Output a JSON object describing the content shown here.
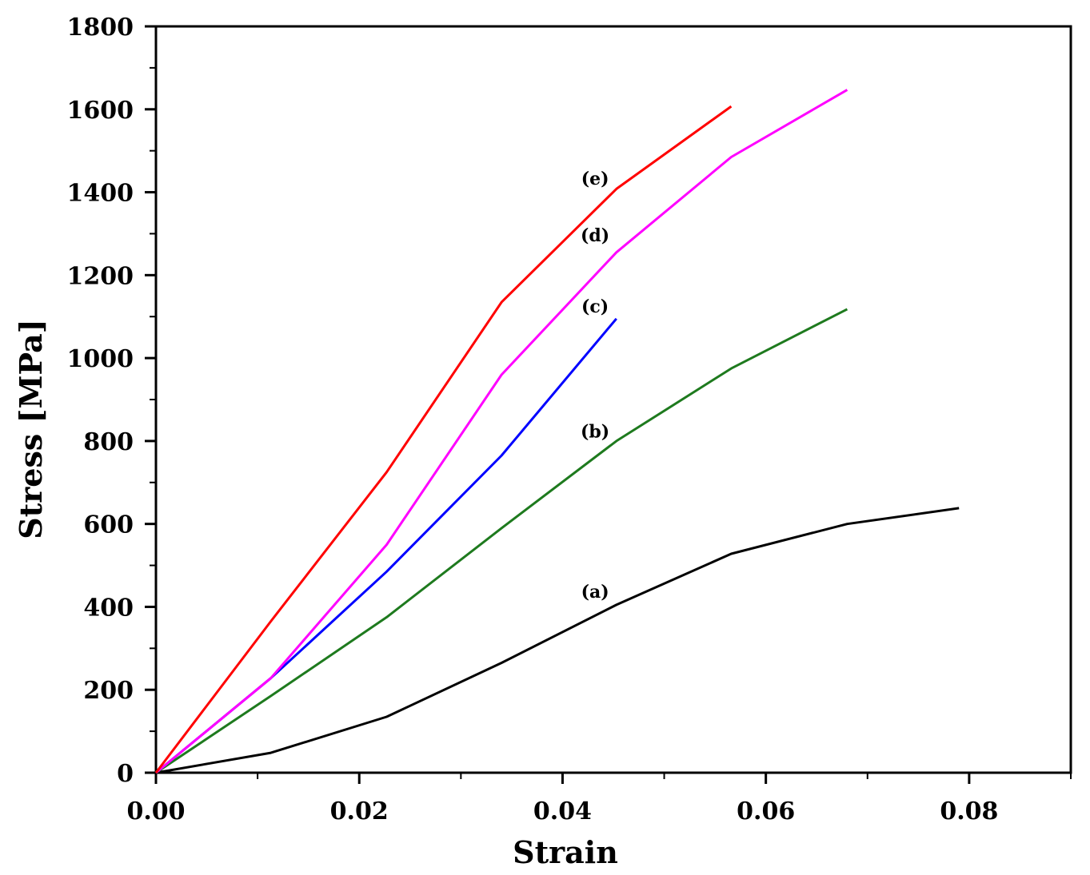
{
  "chart_data": {
    "type": "line",
    "title": "",
    "xlabel": "Strain",
    "ylabel": "Stress [MPa]",
    "xlim": [
      0,
      0.09
    ],
    "ylim": [
      0,
      1800
    ],
    "xticks": [
      "0.00",
      "0.02",
      "0.04",
      "0.06",
      "0.08"
    ],
    "xtick_values": [
      0,
      0.02,
      0.04,
      0.06,
      0.08
    ],
    "yticks": [
      "0",
      "200",
      "400",
      "600",
      "800",
      "1000",
      "1200",
      "1400",
      "1600",
      "1800"
    ],
    "ytick_values": [
      0,
      200,
      400,
      600,
      800,
      1000,
      1200,
      1400,
      1600,
      1800
    ],
    "grid": false,
    "legend": "none",
    "series": [
      {
        "label": "(a)",
        "color": "#000000",
        "x": [
          0,
          0.0113,
          0.0227,
          0.034,
          0.0453,
          0.0566,
          0.068,
          0.079
        ],
        "y": [
          0,
          48,
          135,
          265,
          405,
          528,
          600,
          638
        ]
      },
      {
        "label": "(b)",
        "color": "#1e7a1e",
        "x": [
          0,
          0.0113,
          0.0227,
          0.034,
          0.0453,
          0.0566,
          0.068
        ],
        "y": [
          0,
          185,
          375,
          590,
          800,
          975,
          1118
        ]
      },
      {
        "label": "(c)",
        "color": "#0000ff",
        "x": [
          0,
          0.0113,
          0.0227,
          0.034,
          0.0453
        ],
        "y": [
          0,
          228,
          485,
          765,
          1095
        ]
      },
      {
        "label": "(d)",
        "color": "#ff00ff",
        "x": [
          0,
          0.0113,
          0.0227,
          0.034,
          0.0453,
          0.0566,
          0.068
        ],
        "y": [
          0,
          228,
          550,
          960,
          1255,
          1485,
          1647
        ]
      },
      {
        "label": "(e)",
        "color": "#ff0000",
        "x": [
          0,
          0.0113,
          0.0227,
          0.034,
          0.0453,
          0.0566
        ],
        "y": [
          0,
          365,
          725,
          1135,
          1408,
          1607
        ]
      }
    ],
    "annotations": [
      {
        "text": "(a)",
        "x": 0.0432,
        "y": 422
      },
      {
        "text": "(b)",
        "x": 0.0432,
        "y": 808
      },
      {
        "text": "(c)",
        "x": 0.0432,
        "y": 1110
      },
      {
        "text": "(d)",
        "x": 0.0432,
        "y": 1282
      },
      {
        "text": "(e)",
        "x": 0.0432,
        "y": 1418
      }
    ]
  }
}
